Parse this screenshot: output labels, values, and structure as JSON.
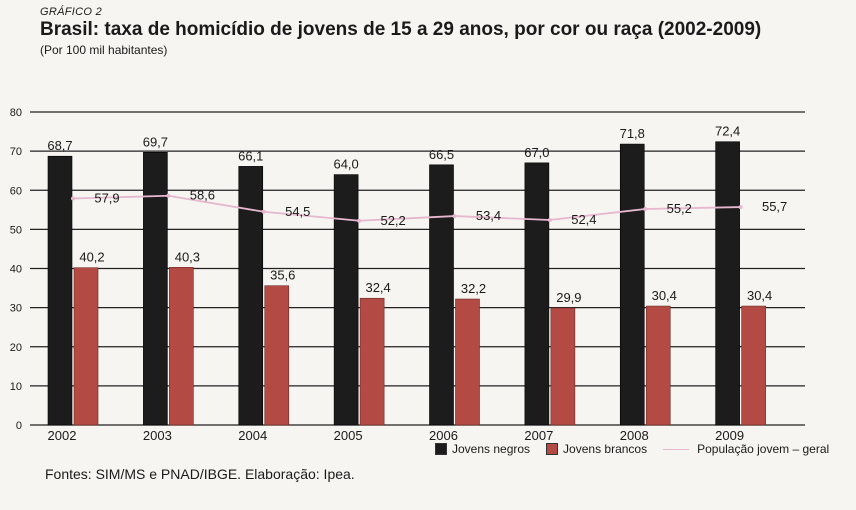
{
  "header": {
    "kicker": "GRÁFICO 2",
    "title": "Brasil: taxa de homicídio de jovens de 15 a 29 anos, por cor ou raça (2002-2009)",
    "subtitle": "(Por 100 mil habitantes)"
  },
  "chart_data": {
    "type": "bar",
    "categories": [
      "2002",
      "2003",
      "2004",
      "2005",
      "2006",
      "2007",
      "2008",
      "2009"
    ],
    "series": [
      {
        "name": "Jovens negros",
        "kind": "bar",
        "color": "#1c1c1c",
        "values": [
          68.7,
          69.7,
          66.1,
          64.0,
          66.5,
          67.0,
          71.8,
          72.4
        ],
        "labels": [
          "68,7",
          "69,7",
          "66,1",
          "64,0",
          "66,5",
          "67,0",
          "71,8",
          "72,4"
        ]
      },
      {
        "name": "Jovens brancos",
        "kind": "bar",
        "color": "#b34a44",
        "values": [
          40.2,
          40.3,
          35.6,
          32.4,
          32.2,
          29.9,
          30.4,
          30.4
        ],
        "labels": [
          "40,2",
          "40,3",
          "35,6",
          "32,4",
          "32,2",
          "29,9",
          "30,4",
          "30,4"
        ]
      },
      {
        "name": "População jovem – geral",
        "kind": "line",
        "color": "#e7b6cf",
        "values": [
          57.9,
          58.6,
          54.5,
          52.2,
          53.4,
          52.4,
          55.2,
          55.7
        ],
        "labels": [
          "57,9",
          "58,6",
          "54,5",
          "52,2",
          "53,4",
          "52,4",
          "55,2",
          "55,7"
        ]
      }
    ],
    "yticks": [
      "0",
      "10",
      "20",
      "30",
      "40",
      "50",
      "60",
      "70",
      "80"
    ],
    "ylim": [
      0,
      80
    ],
    "grid": true,
    "legend_position": "bottom-right"
  },
  "source": "Fontes: SIM/MS e PNAD/IBGE. Elaboração: Ipea."
}
